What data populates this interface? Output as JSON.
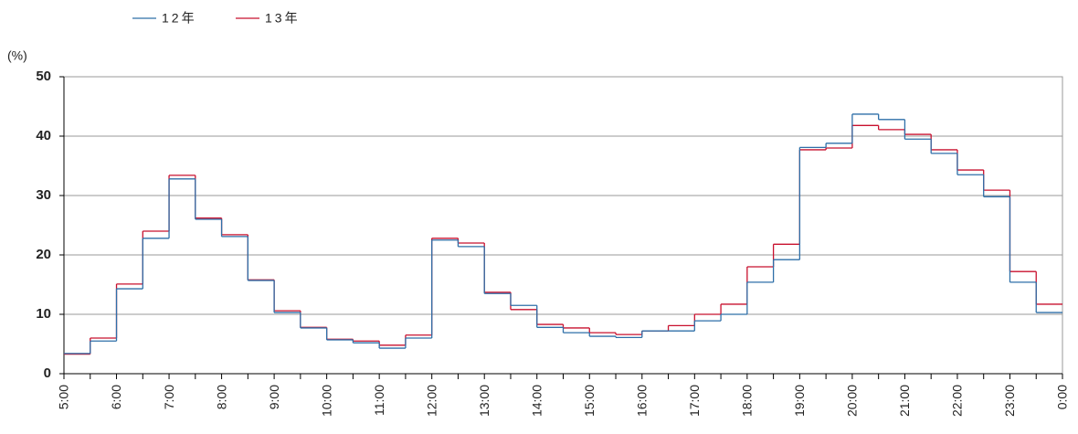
{
  "chart_data": {
    "type": "step",
    "y_unit_label": "(%)",
    "xticks": [
      "5:00",
      "6:00",
      "7:00",
      "8:00",
      "9:00",
      "10:00",
      "11:00",
      "12:00",
      "13:00",
      "14:00",
      "15:00",
      "16:00",
      "17:00",
      "18:00",
      "19:00",
      "20:00",
      "21:00",
      "22:00",
      "23:00",
      "0:00"
    ],
    "ylim": [
      0,
      50
    ],
    "yticks": [
      0,
      10,
      20,
      30,
      40,
      50
    ],
    "grid": true,
    "series": [
      {
        "name": "12年",
        "color": "#2e6fa8",
        "values": [
          3.4,
          5.5,
          14.3,
          22.8,
          32.8,
          26.0,
          23.1,
          15.7,
          10.3,
          7.7,
          5.7,
          5.2,
          4.3,
          6.0,
          22.5,
          21.4,
          13.5,
          11.5,
          7.8,
          6.9,
          6.3,
          6.1,
          7.2,
          7.2,
          8.9,
          10.0,
          15.4,
          19.2,
          38.1,
          38.8,
          43.7,
          42.8,
          39.5,
          37.1,
          33.5,
          29.8,
          15.4,
          10.3
        ]
      },
      {
        "name": "13年",
        "color": "#c8102e",
        "values": [
          3.3,
          6.0,
          15.1,
          24.0,
          33.4,
          26.2,
          23.4,
          15.8,
          10.6,
          7.8,
          5.8,
          5.5,
          4.8,
          6.5,
          22.8,
          22.0,
          13.7,
          10.8,
          8.3,
          7.7,
          6.9,
          6.6,
          7.2,
          8.1,
          10.0,
          11.7,
          18.0,
          21.8,
          37.7,
          38.0,
          41.8,
          41.1,
          40.3,
          37.7,
          34.3,
          30.9,
          17.2,
          11.7
        ]
      }
    ]
  }
}
